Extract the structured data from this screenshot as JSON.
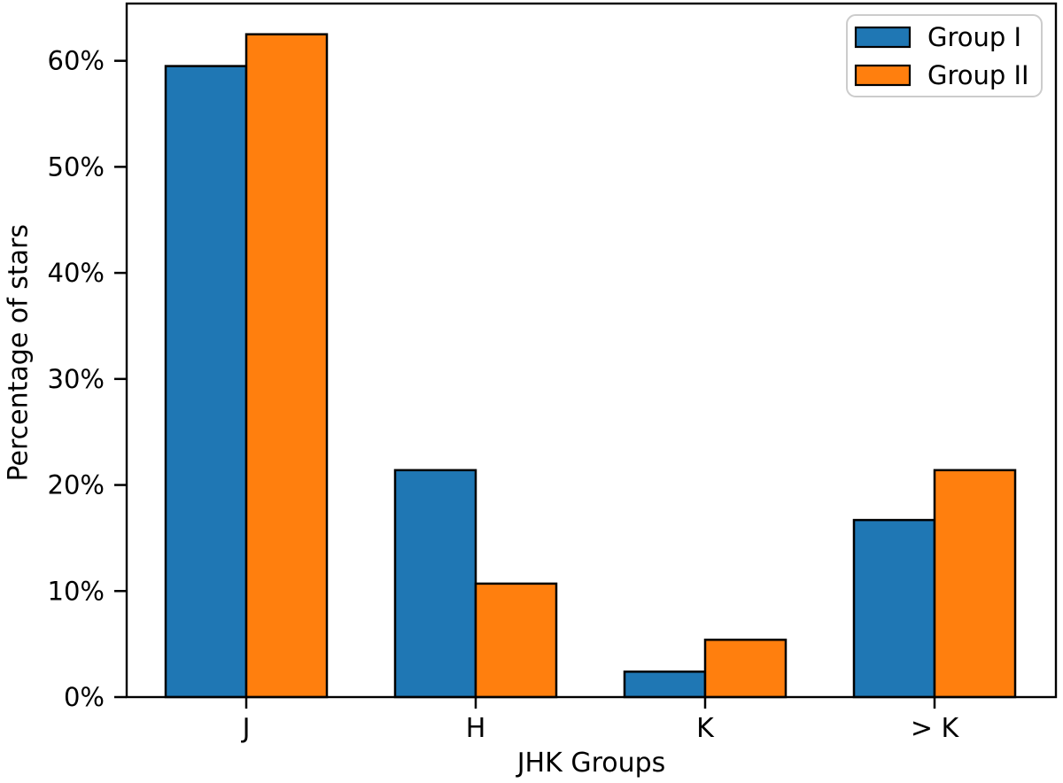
{
  "chart_data": {
    "type": "bar",
    "title": "",
    "xlabel": "JHK Groups",
    "ylabel": "Percentage of stars",
    "categories": [
      "J",
      "H",
      "K",
      "> K"
    ],
    "series": [
      {
        "name": "Group I",
        "color": "#1f77b4",
        "values": [
          59.5,
          21.4,
          2.4,
          16.7
        ]
      },
      {
        "name": "Group II",
        "color": "#ff7f0e",
        "values": [
          62.5,
          10.7,
          5.4,
          21.4
        ]
      }
    ],
    "units": "%",
    "ylim": [
      0,
      65.4
    ],
    "yticks": [
      0,
      10,
      20,
      30,
      40,
      50,
      60
    ],
    "ytick_labels": [
      "0%",
      "10%",
      "20%",
      "30%",
      "40%",
      "50%",
      "60%"
    ],
    "grid": false,
    "legend_position": "upper right",
    "bar_edge_color": "#000000",
    "axis_color": "#000000",
    "legend_border_color": "#cccccc",
    "background_color": "#ffffff"
  }
}
